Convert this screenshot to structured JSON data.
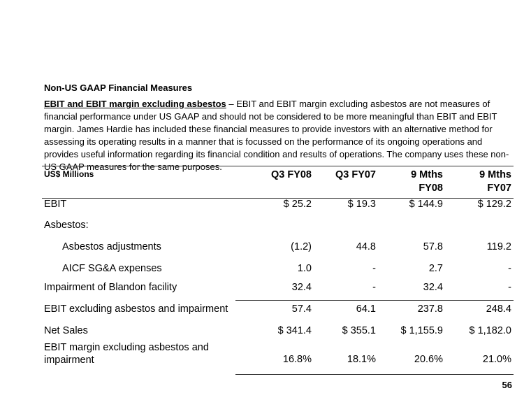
{
  "title": "Non-US GAAP Financial Measures",
  "paragraph": {
    "lead": "EBIT and EBIT margin excluding asbestos",
    "dash": " – ",
    "body": "EBIT and EBIT margin excluding asbestos are not measures of financial performance under US GAAP and should not be considered to be more meaningful than EBIT and EBIT margin. James Hardie has included these financial measures to provide investors with an alternative method for assessing its operating results in a manner that is focussed on the performance of its ongoing operations and provides useful information regarding its financial condition and results of operations. The company uses these non-US GAAP measures for the same purposes."
  },
  "table": {
    "unit_label": "US$ Millions",
    "columns": [
      [
        "Q3 FY08",
        ""
      ],
      [
        "Q3 FY07",
        ""
      ],
      [
        "9 Mths",
        "FY08"
      ],
      [
        "9 Mths",
        "FY07"
      ]
    ],
    "rows": [
      {
        "label": "EBIT",
        "values": [
          "$  25.2",
          "$  19.3",
          "$  144.9",
          "$  129.2"
        ]
      },
      {
        "label": "Asbestos:",
        "values": [
          "",
          "",
          "",
          ""
        ]
      },
      {
        "label": "Asbestos adjustments",
        "indent": true,
        "values": [
          "(1.2)",
          "44.8",
          "57.8",
          "119.2"
        ]
      },
      {
        "label": "AICF SG&A expenses",
        "indent": true,
        "values": [
          "1.0",
          "-",
          "2.7",
          "-"
        ]
      },
      {
        "label": "Impairment of Blandon facility",
        "values": [
          "32.4",
          "-",
          "32.4",
          "-"
        ]
      },
      {
        "label": "EBIT excluding asbestos and impairment",
        "values": [
          "57.4",
          "64.1",
          "237.8",
          "248.4"
        ]
      },
      {
        "label": "Net Sales",
        "values": [
          "$  341.4",
          "$  355.1",
          "$ 1,155.9",
          "$ 1,182.0"
        ]
      },
      {
        "label": "EBIT margin excluding asbestos and impairment",
        "values": [
          "16.8%",
          "18.1%",
          "20.6%",
          "21.0%"
        ]
      }
    ]
  },
  "page_number": "56"
}
